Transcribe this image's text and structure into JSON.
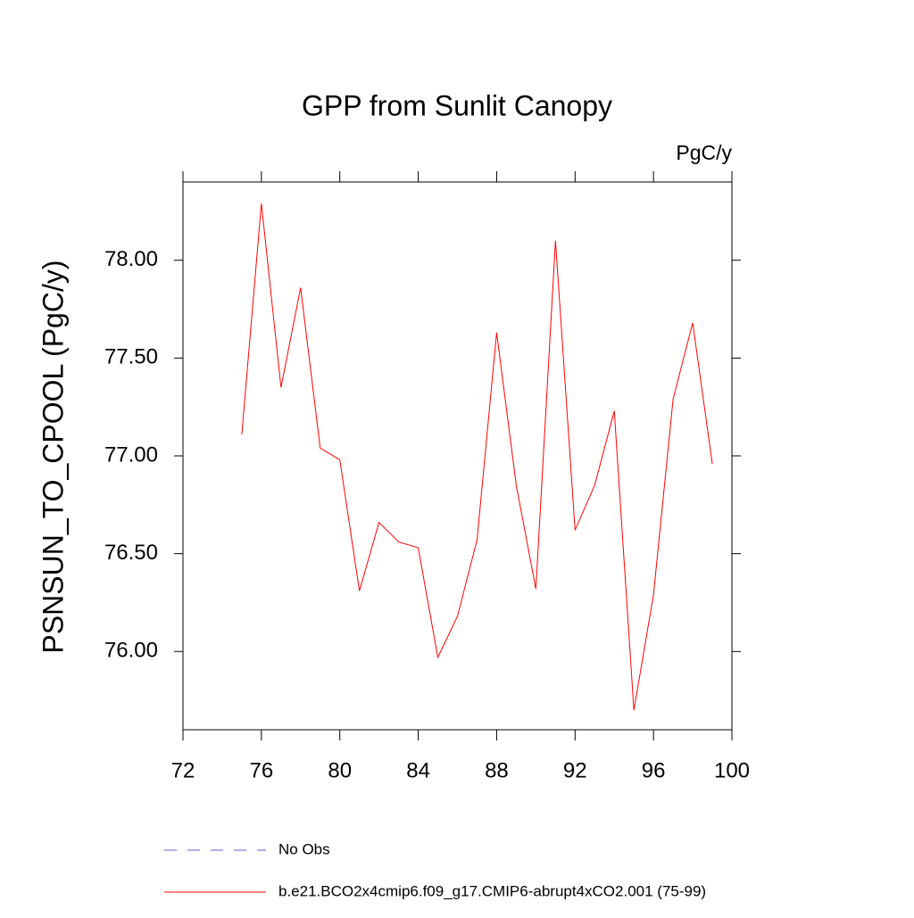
{
  "chart_data": {
    "type": "line",
    "title": "GPP from Sunlit Canopy",
    "units": "PgC/y",
    "y_label": "PSNSUN_TO_CPOOL  (PgC/y)",
    "x": [
      75,
      76,
      77,
      78,
      79,
      80,
      81,
      82,
      83,
      84,
      85,
      86,
      87,
      88,
      89,
      90,
      91,
      92,
      93,
      94,
      95,
      96,
      97,
      98,
      99
    ],
    "series": [
      {
        "name": "No Obs",
        "color": "#6a5acd",
        "dash": true,
        "values": [
          null,
          null,
          null,
          null,
          null,
          null,
          null,
          null,
          null,
          null,
          null,
          null,
          null,
          null,
          null,
          null,
          null,
          null,
          null,
          null,
          null,
          null,
          null,
          null,
          null
        ]
      },
      {
        "name": "b.e21.BCO2x4cmip6.f09_g17.CMIP6-abrupt4xCO2.001 (75-99)",
        "color": "#ff0000",
        "dash": false,
        "values": [
          77.11,
          78.29,
          77.35,
          77.86,
          77.04,
          76.98,
          76.31,
          76.66,
          76.56,
          76.53,
          75.97,
          76.18,
          76.57,
          77.63,
          76.85,
          76.32,
          78.1,
          76.62,
          76.85,
          77.23,
          75.7,
          76.29,
          77.29,
          77.68,
          76.96
        ]
      }
    ],
    "xlim": [
      72,
      100
    ],
    "xticks": [
      72,
      76,
      80,
      84,
      88,
      92,
      96,
      100
    ],
    "ylim": [
      75.6,
      78.4
    ],
    "yticks": [
      {
        "value": 76,
        "label": "76.00"
      },
      {
        "value": 76.5,
        "label": "76.50"
      },
      {
        "value": 77,
        "label": "77.00"
      },
      {
        "value": 77.5,
        "label": "77.50"
      },
      {
        "value": 78,
        "label": "78.00"
      }
    ],
    "grid": false
  }
}
